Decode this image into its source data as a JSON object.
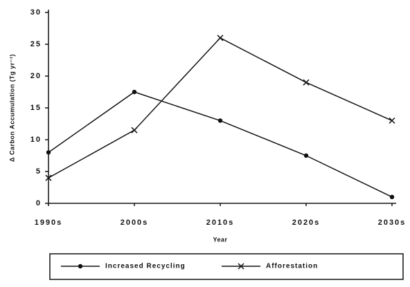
{
  "chart_data": {
    "type": "line",
    "xlabel": "Year",
    "ylabel": "Δ Carbon Accumulation (Tg yr⁻¹)",
    "categories": [
      "1990s",
      "2000s",
      "2010s",
      "2020s",
      "2030s"
    ],
    "series": [
      {
        "name": "Increased Recycling",
        "color": "#111111",
        "marker": "circle",
        "values": [
          8,
          17.5,
          13,
          7.5,
          1
        ]
      },
      {
        "name": "Afforestation",
        "color": "#111111",
        "marker": "x",
        "values": [
          4,
          11.5,
          26,
          19,
          13
        ]
      }
    ],
    "ylim": [
      0,
      30
    ],
    "yticks": [
      0,
      5,
      10,
      15,
      20,
      25,
      30
    ],
    "grid": false
  }
}
